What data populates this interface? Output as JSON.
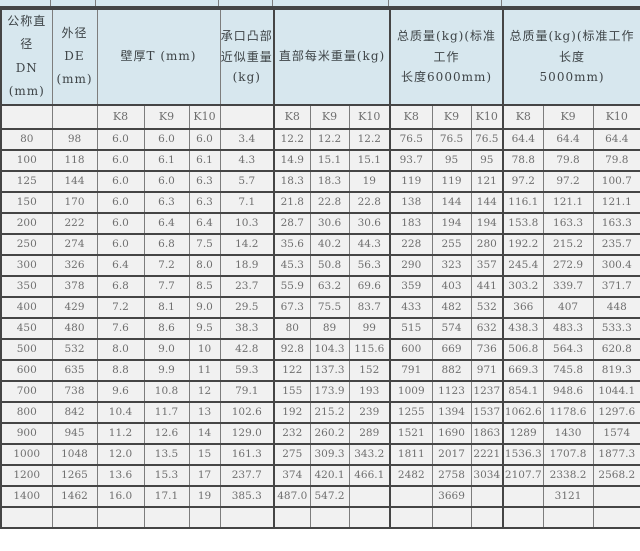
{
  "colors": {
    "header_bg": "#d7e7ee",
    "row_bg": "#f1f1f1",
    "border_dark": "#454545",
    "border_light": "#7d7d7d",
    "text_header": "#3e4447",
    "text_data": "#6f6f6f"
  },
  "table": {
    "header": {
      "col_dn": "公称直径\nDN (mm)",
      "col_de": "外径\nDE (mm)",
      "group_wall": "壁厚T (mm)",
      "col_socket": "承口凸部\n近似重量\n(kg)",
      "group_per_meter": "直部每米重量(kg)",
      "group_total_6000": "总质量(kg)(标准工作\n长度6000mm)",
      "group_total_5000": "总质量(kg)(标准工作长度\n5000mm)",
      "sub_k8": "K8",
      "sub_k9": "K9",
      "sub_k10": "K10"
    },
    "rows": [
      [
        "80",
        "98",
        "6.0",
        "6.0",
        "6.0",
        "3.4",
        "12.2",
        "12.2",
        "12.2",
        "76.5",
        "76.5",
        "76.5",
        "64.4",
        "64.4",
        "64.4"
      ],
      [
        "100",
        "118",
        "6.0",
        "6.1",
        "6.1",
        "4.3",
        "14.9",
        "15.1",
        "15.1",
        "93.7",
        "95",
        "95",
        "78.8",
        "79.8",
        "79.8"
      ],
      [
        "125",
        "144",
        "6.0",
        "6.0",
        "6.3",
        "5.7",
        "18.3",
        "18.3",
        "19",
        "119",
        "119",
        "121",
        "97.2",
        "97.2",
        "100.7"
      ],
      [
        "150",
        "170",
        "6.0",
        "6.3",
        "6.3",
        "7.1",
        "21.8",
        "22.8",
        "22.8",
        "138",
        "144",
        "144",
        "116.1",
        "121.1",
        "121.1"
      ],
      [
        "200",
        "222",
        "6.0",
        "6.4",
        "6.4",
        "10.3",
        "28.7",
        "30.6",
        "30.6",
        "183",
        "194",
        "194",
        "153.8",
        "163.3",
        "163.3"
      ],
      [
        "250",
        "274",
        "6.0",
        "6.8",
        "7.5",
        "14.2",
        "35.6",
        "40.2",
        "44.3",
        "228",
        "255",
        "280",
        "192.2",
        "215.2",
        "235.7"
      ],
      [
        "300",
        "326",
        "6.4",
        "7.2",
        "8.0",
        "18.9",
        "45.3",
        "50.8",
        "56.3",
        "290",
        "323",
        "357",
        "245.4",
        "272.9",
        "300.4"
      ],
      [
        "350",
        "378",
        "6.8",
        "7.7",
        "8.5",
        "23.7",
        "55.9",
        "63.2",
        "69.6",
        "359",
        "403",
        "441",
        "303.2",
        "339.7",
        "371.7"
      ],
      [
        "400",
        "429",
        "7.2",
        "8.1",
        "9.0",
        "29.5",
        "67.3",
        "75.5",
        "83.7",
        "433",
        "482",
        "532",
        "366",
        "407",
        "448"
      ],
      [
        "450",
        "480",
        "7.6",
        "8.6",
        "9.5",
        "38.3",
        "80",
        "89",
        "99",
        "515",
        "574",
        "632",
        "438.3",
        "483.3",
        "533.3"
      ],
      [
        "500",
        "532",
        "8.0",
        "9.0",
        "10",
        "42.8",
        "92.8",
        "104.3",
        "115.6",
        "600",
        "669",
        "736",
        "506.8",
        "564.3",
        "620.8"
      ],
      [
        "600",
        "635",
        "8.8",
        "9.9",
        "11",
        "59.3",
        "122",
        "137.3",
        "152",
        "791",
        "882",
        "971",
        "669.3",
        "745.8",
        "819.3"
      ],
      [
        "700",
        "738",
        "9.6",
        "10.8",
        "12",
        "79.1",
        "155",
        "173.9",
        "193",
        "1009",
        "1123",
        "1237",
        "854.1",
        "948.6",
        "1044.1"
      ],
      [
        "800",
        "842",
        "10.4",
        "11.7",
        "13",
        "102.6",
        "192",
        "215.2",
        "239",
        "1255",
        "1394",
        "1537",
        "1062.6",
        "1178.6",
        "1297.6"
      ],
      [
        "900",
        "945",
        "11.2",
        "12.6",
        "14",
        "129.0",
        "232",
        "260.2",
        "289",
        "1521",
        "1690",
        "1863",
        "1289",
        "1430",
        "1574"
      ],
      [
        "1000",
        "1048",
        "12.0",
        "13.5",
        "15",
        "161.3",
        "275",
        "309.3",
        "343.2",
        "1811",
        "2017",
        "2221",
        "1536.3",
        "1707.8",
        "1877.3"
      ],
      [
        "1200",
        "1265",
        "13.6",
        "15.3",
        "17",
        "237.7",
        "374",
        "420.1",
        "466.1",
        "2482",
        "2758",
        "3034",
        "2107.7",
        "2338.2",
        "2568.2"
      ],
      [
        "1400",
        "1462",
        "16.0",
        "17.1",
        "19",
        "385.3",
        "487.0",
        "547.2",
        "",
        "",
        "3669",
        "",
        "",
        "3121",
        ""
      ],
      [
        "",
        "",
        "",
        "",
        "",
        "",
        "",
        "",
        "",
        "",
        "",
        "",
        "",
        "",
        ""
      ]
    ]
  }
}
